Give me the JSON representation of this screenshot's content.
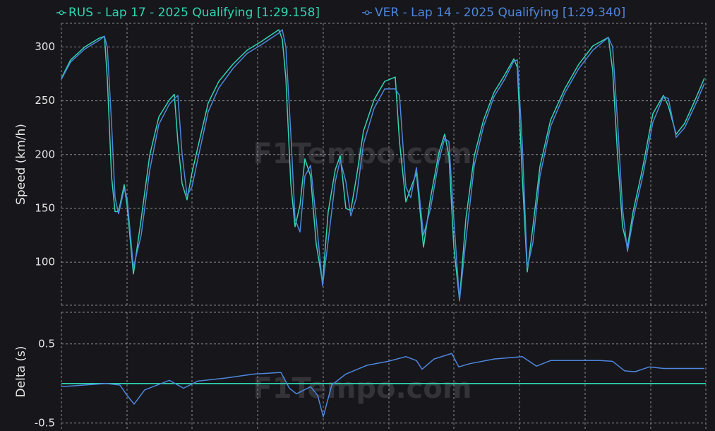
{
  "chart_data": [
    {
      "type": "line",
      "y_label": "Speed (km/h)",
      "watermark": "F1Tempo.com",
      "x": [
        0,
        13,
        33,
        53,
        61,
        65,
        71,
        76,
        81,
        89,
        93,
        102,
        113,
        125,
        138,
        153,
        160,
        165,
        171,
        178,
        185,
        193,
        208,
        223,
        243,
        263,
        283,
        308,
        313,
        318,
        325,
        331,
        338,
        345,
        353,
        361,
        370,
        378,
        388,
        395,
        403,
        410,
        418,
        428,
        443,
        458,
        473,
        479,
        488,
        495,
        503,
        513,
        523,
        535,
        543,
        549,
        556,
        564,
        573,
        585,
        598,
        613,
        628,
        641,
        646,
        653,
        660,
        668,
        678,
        693,
        713,
        733,
        753,
        775,
        781,
        788,
        795,
        802,
        810,
        823,
        838,
        853,
        860,
        871,
        883,
        898,
        911
      ],
      "xlim": [
        0,
        913
      ],
      "xticks": [
        0,
        93,
        185,
        278,
        371,
        464,
        556,
        649,
        742,
        835
      ],
      "ylim": [
        60,
        322
      ],
      "yticks": [
        100,
        150,
        200,
        250,
        300
      ],
      "grid": true,
      "series": [
        {
          "name": "RUS - Lap 17 - 2025 Qualifying [1:29.158]",
          "color": "#2fd6b2",
          "values": [
            271,
            288,
            300,
            308,
            310,
            271,
            180,
            147,
            147,
            172,
            153,
            89,
            140,
            199,
            235,
            251,
            256,
            212,
            173,
            158,
            183,
            206,
            248,
            268,
            284,
            297,
            305,
            316,
            307,
            271,
            173,
            133,
            153,
            196,
            180,
            117,
            81,
            147,
            186,
            199,
            150,
            148,
            179,
            222,
            251,
            268,
            272,
            212,
            156,
            169,
            183,
            114,
            160,
            202,
            219,
            199,
            114,
            65,
            140,
            199,
            232,
            258,
            274,
            289,
            281,
            179,
            91,
            133,
            189,
            232,
            261,
            284,
            301,
            309,
            278,
            199,
            133,
            114,
            147,
            186,
            238,
            255,
            245,
            219,
            229,
            251,
            271
          ]
        },
        {
          "name": "VER - Lap 14 - 2025 Qualifying [1:29.340]",
          "color": "#4f86dc",
          "values": [
            270,
            286,
            298,
            306,
            310,
            300,
            230,
            160,
            145,
            168,
            160,
            95,
            125,
            185,
            228,
            247,
            252,
            255,
            200,
            162,
            170,
            195,
            240,
            262,
            280,
            294,
            302,
            313,
            316,
            300,
            220,
            140,
            128,
            180,
            190,
            140,
            78,
            120,
            175,
            195,
            175,
            143,
            160,
            210,
            243,
            261,
            261,
            255,
            170,
            160,
            188,
            125,
            150,
            195,
            215,
            212,
            140,
            64,
            120,
            190,
            226,
            254,
            270,
            287,
            288,
            210,
            95,
            118,
            180,
            226,
            257,
            280,
            297,
            309,
            300,
            230,
            150,
            110,
            140,
            178,
            230,
            254,
            252,
            216,
            225,
            246,
            266
          ]
        }
      ]
    },
    {
      "type": "line",
      "y_label": "Delta (s)",
      "watermark": "F1Tempo.com",
      "x": [
        0,
        63,
        83,
        93,
        103,
        118,
        153,
        173,
        193,
        233,
        273,
        311,
        323,
        333,
        353,
        363,
        371,
        383,
        403,
        433,
        463,
        488,
        503,
        511,
        528,
        553,
        563,
        578,
        613,
        653,
        673,
        693,
        763,
        781,
        798,
        813,
        833,
        853,
        911
      ],
      "xlim": [
        0,
        913
      ],
      "xticks": [
        0,
        93,
        185,
        278,
        371,
        464,
        556,
        649,
        742,
        835
      ],
      "ylim": [
        -0.6,
        0.9
      ],
      "yticks": [
        -0.5,
        0.5
      ],
      "grid": true,
      "reference_line": {
        "value": 0,
        "color": "#2fd6b2"
      },
      "series": [
        {
          "color": "#4f86dc",
          "values": [
            -0.04,
            0,
            -0.02,
            -0.15,
            -0.26,
            -0.08,
            0.04,
            -0.06,
            0.03,
            0.07,
            0.12,
            0.14,
            -0.06,
            -0.13,
            -0.04,
            -0.15,
            -0.42,
            -0.02,
            0.12,
            0.23,
            0.28,
            0.34,
            0.29,
            0.18,
            0.31,
            0.38,
            0.21,
            0.25,
            0.31,
            0.34,
            0.22,
            0.29,
            0.29,
            0.28,
            0.16,
            0.15,
            0.21,
            0.19,
            0.19
          ]
        }
      ]
    }
  ]
}
